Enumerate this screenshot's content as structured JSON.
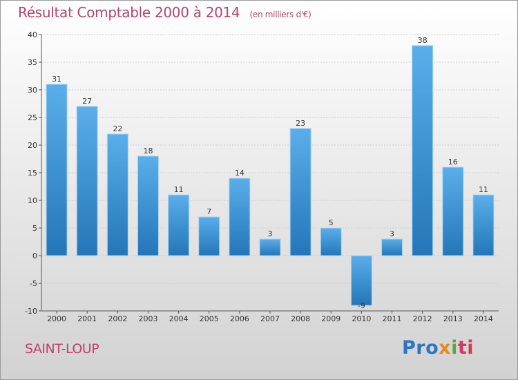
{
  "header": {
    "title": "Résultat Comptable 2000 à 2014",
    "subtitle": "(en milliers d'€)"
  },
  "footer": {
    "town": "SAINT-LOUP",
    "brand_parts": [
      "Pro",
      "x",
      "i",
      "ti"
    ]
  },
  "colors": {
    "title": "#b0456e",
    "bar_top": "#5aaeea",
    "bar_bottom": "#2476b8",
    "grid": "#cccccc"
  },
  "chart_data": {
    "type": "bar",
    "title": "Résultat Comptable 2000 à 2014",
    "subtitle": "(en milliers d'€)",
    "categories": [
      "2000",
      "2001",
      "2002",
      "2003",
      "2004",
      "2005",
      "2006",
      "2007",
      "2008",
      "2009",
      "2010",
      "2011",
      "2012",
      "2013",
      "2014"
    ],
    "values": [
      31,
      27,
      22,
      18,
      11,
      7,
      14,
      3,
      23,
      5,
      -9,
      3,
      38,
      16,
      11
    ],
    "ylim": [
      -10,
      40
    ],
    "yticks": [
      -10,
      -5,
      0,
      5,
      10,
      15,
      20,
      25,
      30,
      35,
      40
    ],
    "grid": true,
    "xlabel": "",
    "ylabel": ""
  }
}
